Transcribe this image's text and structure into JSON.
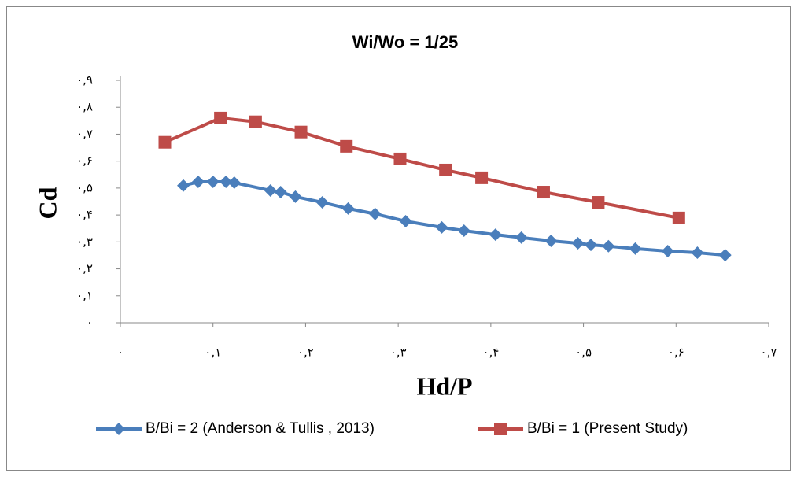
{
  "chart_data": {
    "type": "scatter",
    "title": "Wi/Wo = 1/25",
    "x_label": "Hd/P",
    "y_label": "Cd",
    "xlim": [
      0,
      0.7
    ],
    "ylim": [
      0,
      0.9
    ],
    "xticks": [
      {
        "value": 0,
        "label": "۰"
      },
      {
        "value": 0.1,
        "label": "۰,۱"
      },
      {
        "value": 0.2,
        "label": "۰,۲"
      },
      {
        "value": 0.3,
        "label": "۰,۳"
      },
      {
        "value": 0.4,
        "label": "۰,۴"
      },
      {
        "value": 0.5,
        "label": "۰,۵"
      },
      {
        "value": 0.6,
        "label": "۰,۶"
      },
      {
        "value": 0.7,
        "label": "۰,۷"
      }
    ],
    "yticks": [
      {
        "value": 0,
        "label": "۰"
      },
      {
        "value": 0.1,
        "label": "۰,۱"
      },
      {
        "value": 0.2,
        "label": "۰,۲"
      },
      {
        "value": 0.3,
        "label": "۰,۳"
      },
      {
        "value": 0.4,
        "label": "۰,۴"
      },
      {
        "value": 0.5,
        "label": "۰,۵"
      },
      {
        "value": 0.6,
        "label": "۰,۶"
      },
      {
        "value": 0.7,
        "label": "۰,۷"
      },
      {
        "value": 0.8,
        "label": "۰,۸"
      },
      {
        "value": 0.9,
        "label": "۰,۹"
      }
    ],
    "grid": false,
    "legend": "bottom",
    "series": [
      {
        "name": "B/Bi = 2 (Anderson & Tullis , 2013)",
        "color": "#4a7ebb",
        "marker": "diamond",
        "x": [
          0.068,
          0.084,
          0.1,
          0.114,
          0.123,
          0.162,
          0.173,
          0.189,
          0.218,
          0.246,
          0.275,
          0.308,
          0.347,
          0.371,
          0.405,
          0.433,
          0.465,
          0.494,
          0.508,
          0.527,
          0.556,
          0.591,
          0.623,
          0.653
        ],
        "values": [
          0.509,
          0.523,
          0.523,
          0.523,
          0.52,
          0.491,
          0.485,
          0.468,
          0.447,
          0.424,
          0.404,
          0.377,
          0.354,
          0.342,
          0.327,
          0.316,
          0.304,
          0.295,
          0.289,
          0.284,
          0.275,
          0.266,
          0.26,
          0.251
        ]
      },
      {
        "name": "B/Bi = 1 (Present Study)",
        "color": "#be4b48",
        "marker": "square",
        "x": [
          0.048,
          0.108,
          0.146,
          0.195,
          0.244,
          0.302,
          0.351,
          0.39,
          0.457,
          0.516,
          0.603
        ],
        "values": [
          0.67,
          0.76,
          0.746,
          0.708,
          0.655,
          0.608,
          0.567,
          0.538,
          0.485,
          0.447,
          0.389
        ]
      }
    ]
  }
}
